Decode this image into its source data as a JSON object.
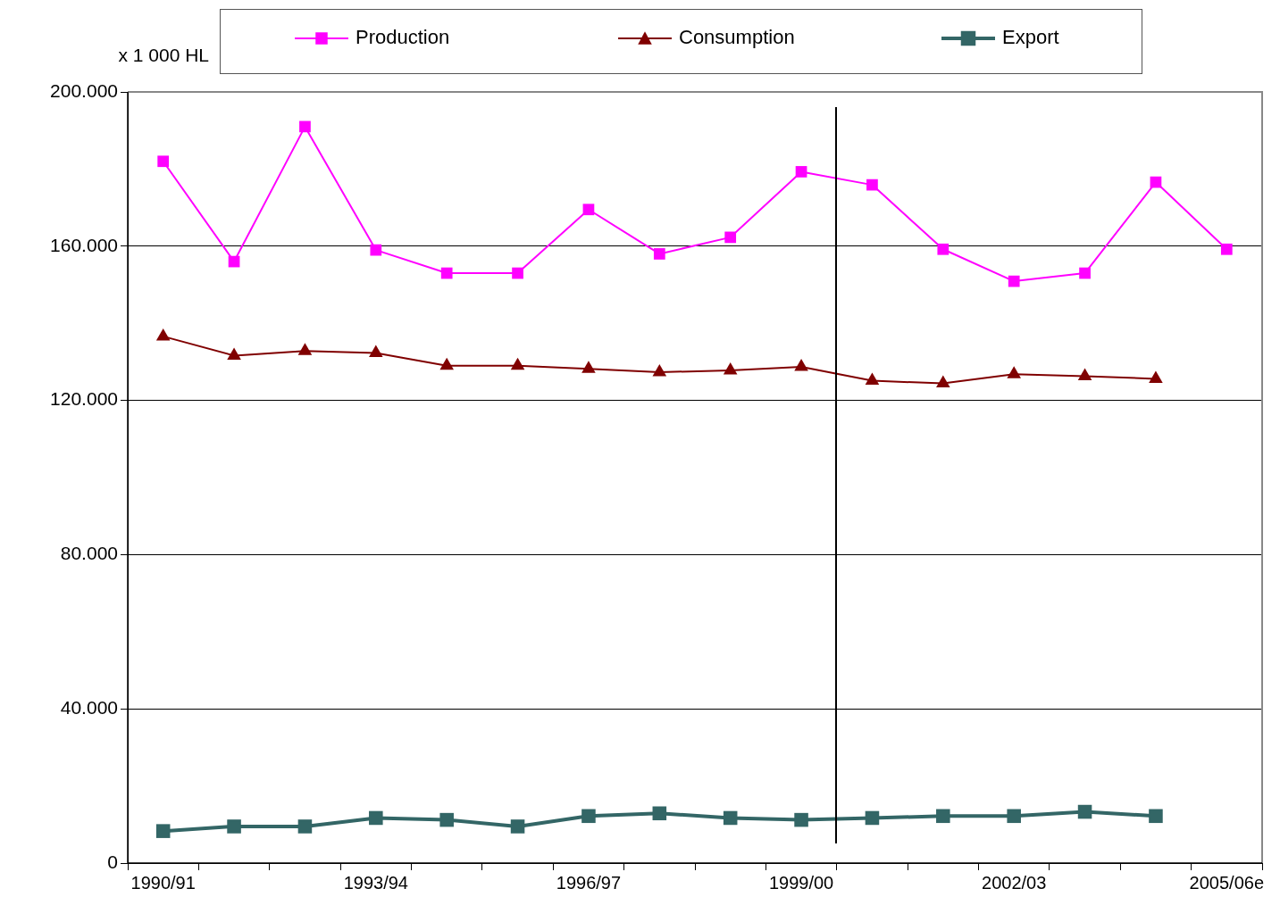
{
  "chart_data": {
    "type": "line",
    "ylabel": "x 1 000 HL",
    "categories": [
      "1990/91",
      null,
      null,
      "1993/94",
      null,
      null,
      "1996/97",
      null,
      null,
      "1999/00",
      null,
      null,
      "2002/03",
      null,
      null,
      "2005/06e"
    ],
    "series": [
      {
        "name": "Production",
        "color": "#ff00ff",
        "marker": "square",
        "values": [
          182000,
          156000,
          191000,
          159000,
          153000,
          153000,
          169500,
          158000,
          162300,
          179300,
          175900,
          159200,
          150900,
          153000,
          176600,
          159200
        ]
      },
      {
        "name": "Consumption",
        "color": "#800000",
        "marker": "triangle",
        "values": [
          136600,
          131600,
          132800,
          132300,
          129000,
          129000,
          128200,
          127300,
          127800,
          128700,
          125100,
          124400,
          126800,
          126300,
          125600,
          null
        ]
      },
      {
        "name": "Export",
        "color": "#336666",
        "marker": "square",
        "values": [
          8300,
          9500,
          9500,
          11700,
          11200,
          9500,
          12200,
          12900,
          11700,
          11200,
          11700,
          12200,
          12200,
          13300,
          12200,
          null
        ]
      }
    ],
    "ylim": [
      0,
      200000
    ],
    "yticks": [
      0,
      {
        "value": 40000,
        "label": "40.000"
      },
      {
        "value": 80000,
        "label": "80.000"
      },
      {
        "value": 120000,
        "label": "120.000"
      },
      {
        "value": 160000,
        "label": "160.000"
      },
      {
        "value": 200000,
        "label": "200.000"
      }
    ],
    "grid": "y",
    "legend": "top"
  }
}
